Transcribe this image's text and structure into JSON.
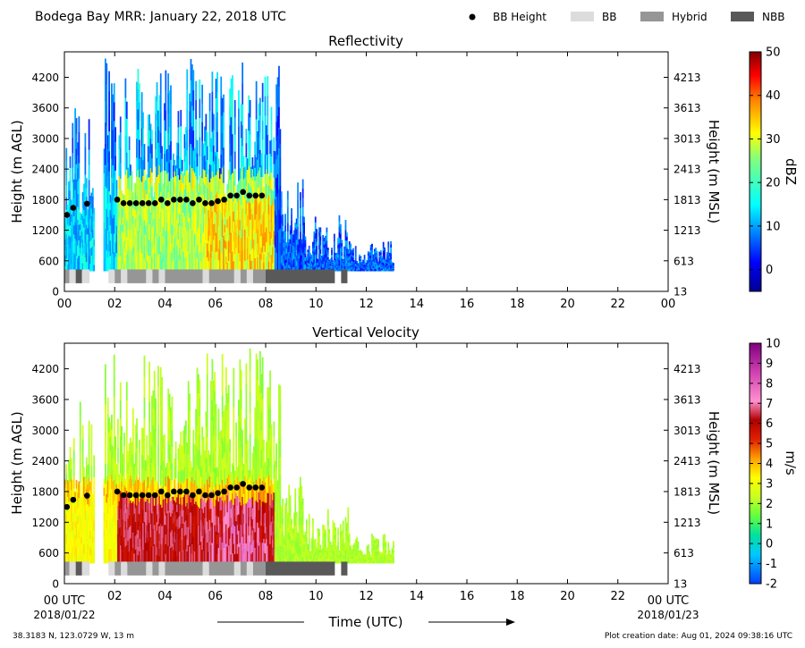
{
  "title": "Bodega Bay MRR:  January 22, 2018 UTC",
  "legend": {
    "items": [
      {
        "label": "BB Height",
        "symbol": "dot",
        "color": "#000000"
      },
      {
        "label": "BB",
        "symbol": "box",
        "color": "#dcdcdc"
      },
      {
        "label": "Hybrid",
        "symbol": "box",
        "color": "#969696"
      },
      {
        "label": "NBB",
        "symbol": "box",
        "color": "#595959"
      }
    ]
  },
  "footer": {
    "location": "38.3183 N, 123.0729 W, 13 m",
    "creation": "Plot creation date: Aug 01, 2024 09:38:16 UTC",
    "xlabel": "Time (UTC)",
    "start_tick": "00 UTC",
    "end_tick": "00 UTC",
    "start_date": "2018/01/22",
    "end_date": "2018/01/23"
  },
  "chart_data": [
    {
      "type": "heatmap",
      "title": "Reflectivity",
      "ylabel": "Height (m AGL)",
      "y2label": "Height (m MSL)",
      "colorbar_label": "dBZ",
      "colorbar_ticks": [
        "50",
        "40",
        "30",
        "20",
        "10",
        "0"
      ],
      "colorbar_range": [
        -5,
        50
      ],
      "colorscale": "jet",
      "xlim": [
        0,
        24
      ],
      "ylim": [
        0,
        4700
      ],
      "xticks": [
        "00",
        "02",
        "04",
        "06",
        "08",
        "10",
        "12",
        "14",
        "16",
        "18",
        "20",
        "22",
        "00"
      ],
      "yticks": [
        "0",
        "600",
        "1200",
        "1800",
        "2400",
        "3000",
        "3600",
        "4200"
      ],
      "y2ticks": [
        "13",
        "613",
        "1213",
        "1813",
        "2413",
        "3013",
        "3613",
        "4213"
      ],
      "grid": false
    },
    {
      "type": "heatmap",
      "title": "Vertical Velocity",
      "ylabel": "Height (m AGL)",
      "y2label": "Height (m MSL)",
      "colorbar_label": "m/s",
      "colorbar_ticks": [
        "10",
        "9",
        "8",
        "7",
        "6",
        "5",
        "4",
        "3",
        "2",
        "1",
        "0",
        "-1",
        "-2"
      ],
      "colorbar_range": [
        -2,
        10
      ],
      "colorscale": "velocity",
      "xlim": [
        0,
        24
      ],
      "ylim": [
        0,
        4700
      ],
      "xticks": [
        "",
        "02",
        "04",
        "06",
        "08",
        "10",
        "12",
        "14",
        "16",
        "18",
        "20",
        "22",
        ""
      ],
      "yticks": [
        "0",
        "600",
        "1200",
        "1800",
        "2400",
        "3000",
        "3600",
        "4200"
      ],
      "y2ticks": [
        "13",
        "613",
        "1213",
        "1813",
        "2413",
        "3013",
        "3613",
        "4213"
      ],
      "grid": false
    }
  ],
  "bb_height": {
    "times": [
      0.1,
      0.35,
      0.9,
      2.1,
      2.35,
      2.6,
      2.85,
      3.1,
      3.35,
      3.6,
      3.85,
      4.1,
      4.35,
      4.6,
      4.85,
      5.1,
      5.35,
      5.6,
      5.85,
      6.1,
      6.35,
      6.6,
      6.85,
      7.1,
      7.35,
      7.6,
      7.85
    ],
    "heights": [
      1500,
      1640,
      1720,
      1800,
      1730,
      1730,
      1730,
      1730,
      1730,
      1730,
      1800,
      1730,
      1800,
      1800,
      1800,
      1730,
      1800,
      1730,
      1730,
      1770,
      1800,
      1880,
      1880,
      1950,
      1880,
      1880,
      1880
    ]
  },
  "bb_class": [
    {
      "start": 0.0,
      "end": 0.2,
      "class": "Hybrid"
    },
    {
      "start": 0.2,
      "end": 0.45,
      "class": "BB"
    },
    {
      "start": 0.45,
      "end": 0.7,
      "class": "NBB"
    },
    {
      "start": 0.7,
      "end": 1.0,
      "class": "BB"
    },
    {
      "start": 1.75,
      "end": 2.0,
      "class": "BB"
    },
    {
      "start": 2.0,
      "end": 2.25,
      "class": "Hybrid"
    },
    {
      "start": 2.25,
      "end": 2.5,
      "class": "BB"
    },
    {
      "start": 2.5,
      "end": 3.25,
      "class": "Hybrid"
    },
    {
      "start": 3.25,
      "end": 3.5,
      "class": "BB"
    },
    {
      "start": 3.5,
      "end": 3.75,
      "class": "Hybrid"
    },
    {
      "start": 3.75,
      "end": 4.0,
      "class": "BB"
    },
    {
      "start": 4.0,
      "end": 5.5,
      "class": "Hybrid"
    },
    {
      "start": 5.5,
      "end": 5.75,
      "class": "BB"
    },
    {
      "start": 5.75,
      "end": 6.75,
      "class": "Hybrid"
    },
    {
      "start": 6.75,
      "end": 7.0,
      "class": "BB"
    },
    {
      "start": 7.0,
      "end": 7.25,
      "class": "Hybrid"
    },
    {
      "start": 7.25,
      "end": 7.5,
      "class": "BB"
    },
    {
      "start": 7.5,
      "end": 8.0,
      "class": "Hybrid"
    },
    {
      "start": 8.0,
      "end": 10.75,
      "class": "NBB"
    },
    {
      "start": 11.0,
      "end": 11.25,
      "class": "NBB"
    }
  ],
  "precip_columns": [
    {
      "start": 0.0,
      "end": 1.2,
      "top": 3600
    },
    {
      "start": 1.2,
      "end": 1.55,
      "top": 0
    },
    {
      "start": 1.55,
      "end": 2.1,
      "top": 4600
    },
    {
      "start": 2.1,
      "end": 4.3,
      "top": 4500
    },
    {
      "start": 4.3,
      "end": 4.5,
      "top": 3200
    },
    {
      "start": 4.5,
      "end": 8.6,
      "top": 4600
    },
    {
      "start": 8.6,
      "end": 9.5,
      "top": 2300
    },
    {
      "start": 9.5,
      "end": 11.3,
      "top": 1500
    },
    {
      "start": 11.3,
      "end": 13.1,
      "top": 1000
    }
  ]
}
